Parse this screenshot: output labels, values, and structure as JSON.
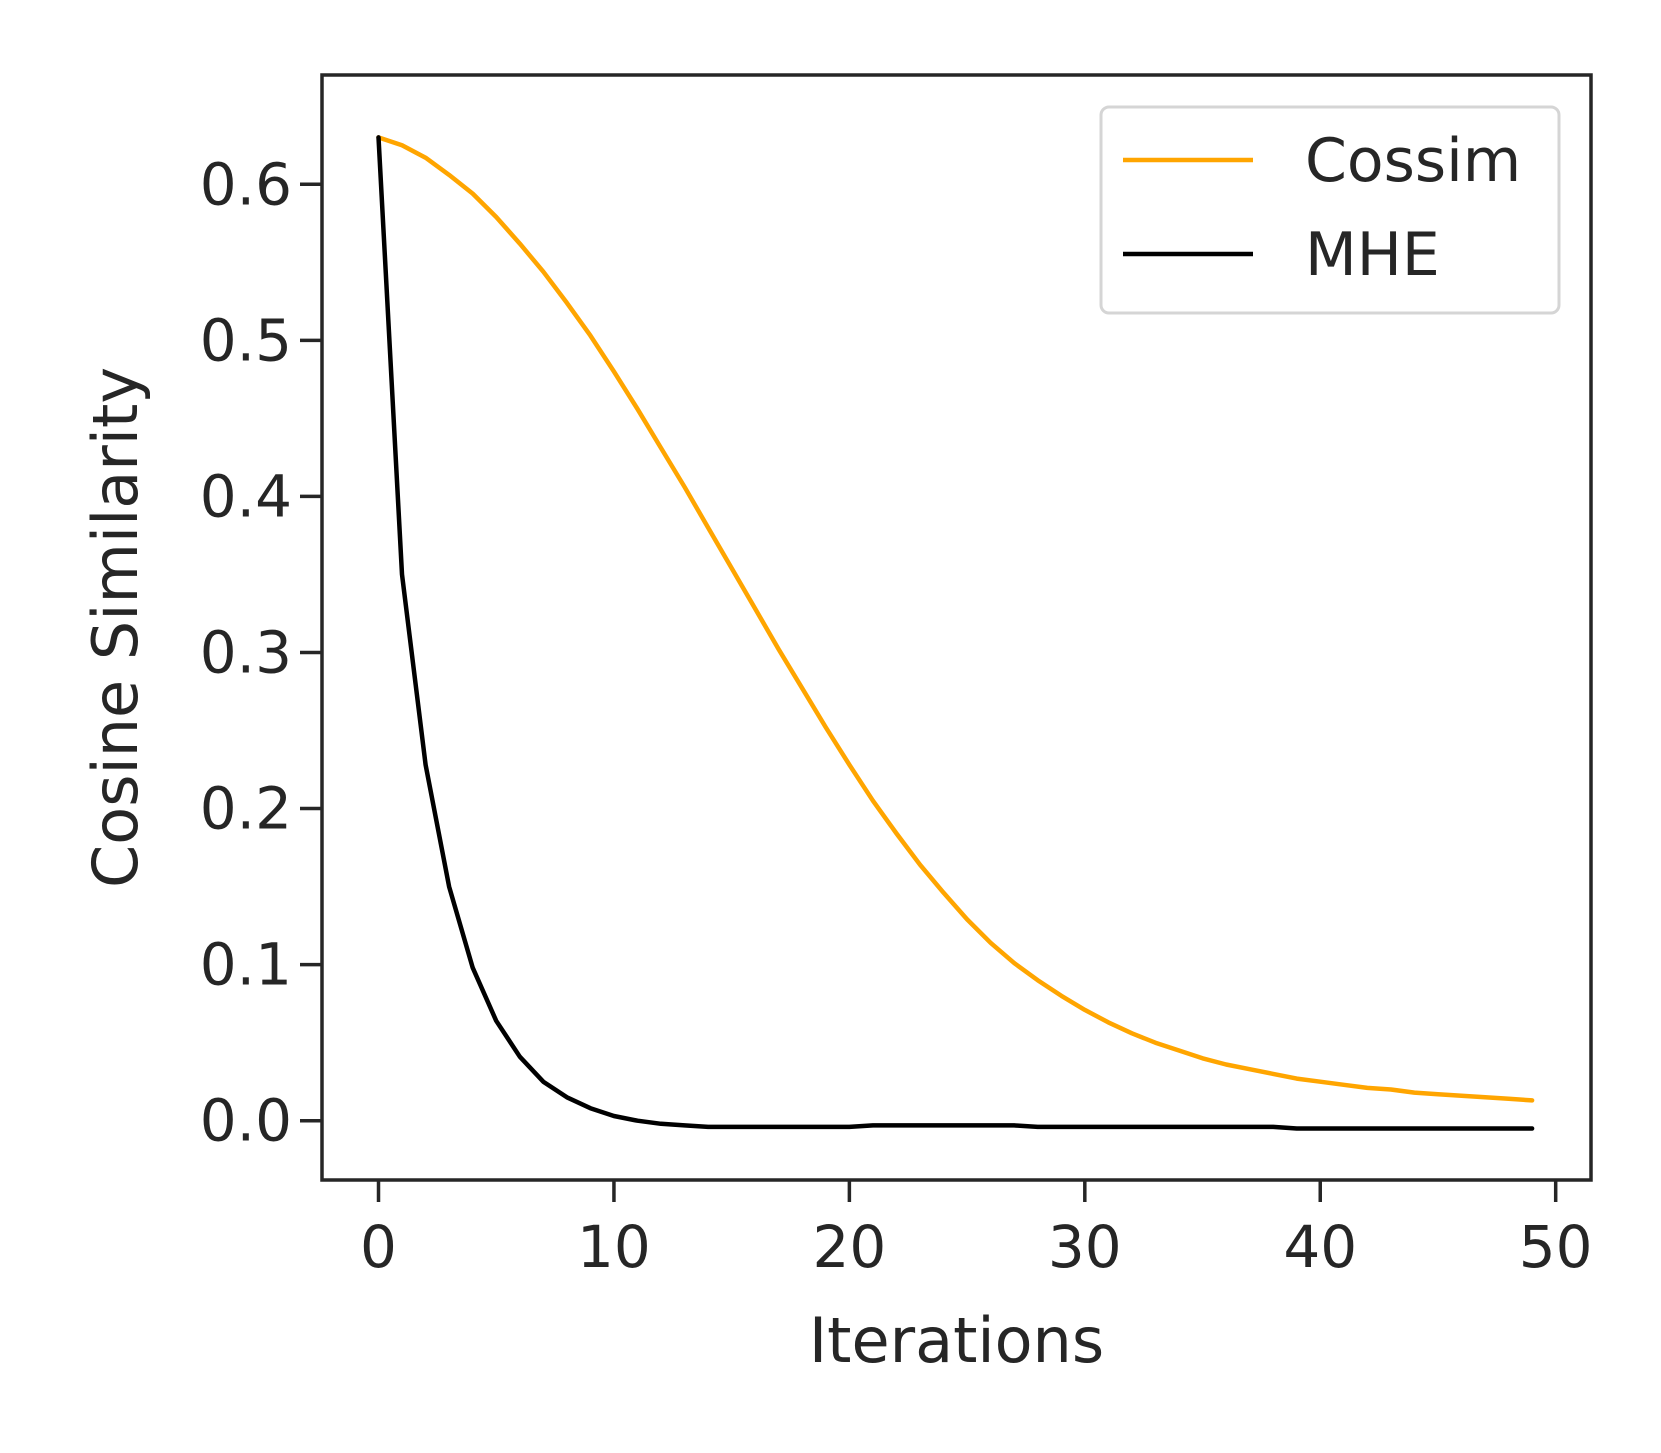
{
  "chart_data": {
    "type": "line",
    "title": "",
    "xlabel": "Iterations",
    "ylabel": "Cosine Similarity",
    "xlim": [
      -2.4,
      51.5
    ],
    "ylim": [
      -0.038,
      0.67
    ],
    "x_ticks": [
      0,
      10,
      20,
      30,
      40,
      50
    ],
    "y_ticks": [
      0.0,
      0.1,
      0.2,
      0.3,
      0.4,
      0.5,
      0.6
    ],
    "x_tick_labels": [
      "0",
      "10",
      "20",
      "30",
      "40",
      "50"
    ],
    "y_tick_labels": [
      "0.0",
      "0.1",
      "0.2",
      "0.3",
      "0.4",
      "0.5",
      "0.6"
    ],
    "grid": false,
    "legend_position": "top-right",
    "x": [
      0,
      1,
      2,
      3,
      4,
      5,
      6,
      7,
      8,
      9,
      10,
      11,
      12,
      13,
      14,
      15,
      16,
      17,
      18,
      19,
      20,
      21,
      22,
      23,
      24,
      25,
      26,
      27,
      28,
      29,
      30,
      31,
      32,
      33,
      34,
      35,
      36,
      37,
      38,
      39,
      40,
      41,
      42,
      43,
      44,
      45,
      46,
      47,
      48,
      49
    ],
    "series": [
      {
        "name": "Cossim",
        "color": "#ffa500",
        "values": [
          0.63,
          0.625,
          0.617,
          0.606,
          0.594,
          0.579,
          0.562,
          0.544,
          0.524,
          0.503,
          0.48,
          0.456,
          0.431,
          0.406,
          0.38,
          0.354,
          0.328,
          0.302,
          0.277,
          0.252,
          0.228,
          0.205,
          0.184,
          0.164,
          0.146,
          0.129,
          0.114,
          0.101,
          0.09,
          0.08,
          0.071,
          0.063,
          0.056,
          0.05,
          0.045,
          0.04,
          0.036,
          0.033,
          0.03,
          0.027,
          0.025,
          0.023,
          0.021,
          0.02,
          0.018,
          0.017,
          0.016,
          0.015,
          0.014,
          0.013
        ]
      },
      {
        "name": "MHE",
        "color": "#000000",
        "values": [
          0.63,
          0.35,
          0.228,
          0.15,
          0.098,
          0.064,
          0.041,
          0.025,
          0.015,
          0.008,
          0.003,
          0.0,
          -0.002,
          -0.003,
          -0.004,
          -0.004,
          -0.004,
          -0.004,
          -0.004,
          -0.004,
          -0.004,
          -0.003,
          -0.003,
          -0.003,
          -0.003,
          -0.003,
          -0.003,
          -0.003,
          -0.004,
          -0.004,
          -0.004,
          -0.004,
          -0.004,
          -0.004,
          -0.004,
          -0.004,
          -0.004,
          -0.004,
          -0.004,
          -0.005,
          -0.005,
          -0.005,
          -0.005,
          -0.005,
          -0.005,
          -0.005,
          -0.005,
          -0.005,
          -0.005,
          -0.005
        ]
      }
    ]
  }
}
